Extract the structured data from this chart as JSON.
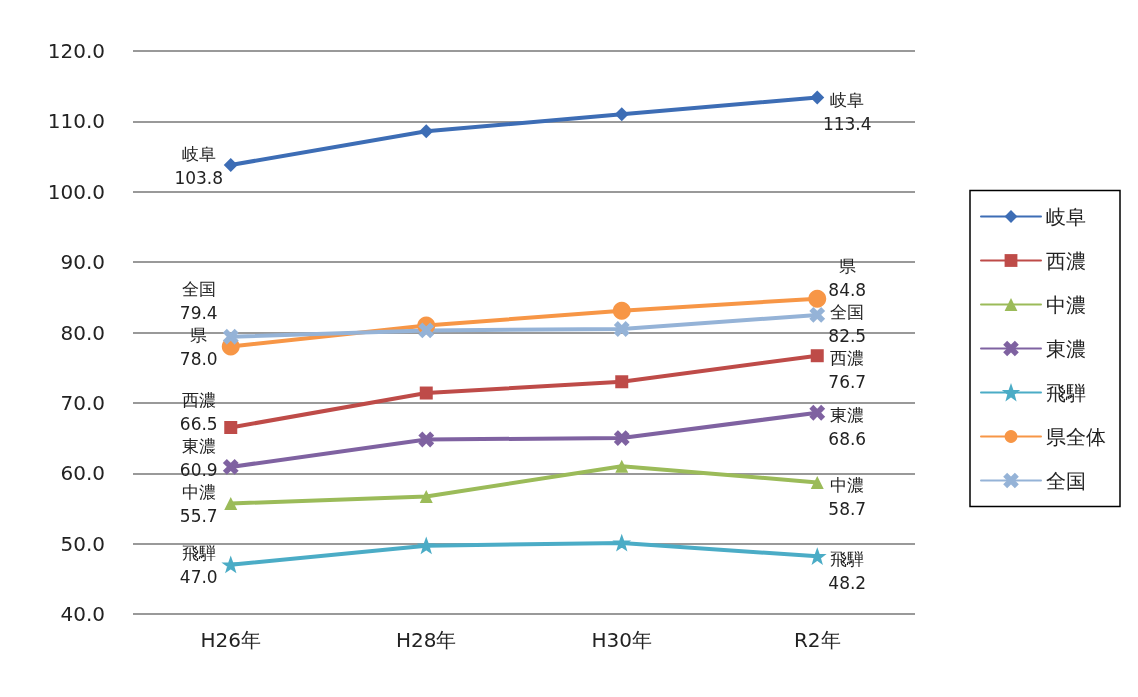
{
  "chart_data": {
    "type": "line",
    "categories": [
      "H26年",
      "H28年",
      "H30年",
      "R2年"
    ],
    "ylim": [
      40,
      120
    ],
    "yticks": [
      {
        "value": 40,
        "label": "40.0"
      },
      {
        "value": 50,
        "label": "50.0"
      },
      {
        "value": 60,
        "label": "60.0"
      },
      {
        "value": 70,
        "label": "70.0"
      },
      {
        "value": 80,
        "label": "80.0"
      },
      {
        "value": 90,
        "label": "90.0"
      },
      {
        "value": 100,
        "label": "100.0"
      },
      {
        "value": 110,
        "label": "110.0"
      },
      {
        "value": 120,
        "label": "120.0"
      }
    ],
    "grid": "y",
    "legend": "right",
    "line_style": "solid",
    "series": [
      {
        "name": "岐阜",
        "color": "#3d6db5",
        "marker": "diamond",
        "values": [
          103.8,
          108.6,
          111.0,
          113.4
        ],
        "value_labels": [
          "103.8",
          null,
          null,
          "113.4"
        ]
      },
      {
        "name": "西濃",
        "color": "#be4b48",
        "marker": "square",
        "values": [
          66.5,
          71.4,
          73.0,
          76.7
        ],
        "value_labels": [
          "66.5",
          null,
          null,
          "76.7"
        ]
      },
      {
        "name": "中濃",
        "color": "#9bbb59",
        "marker": "triangle",
        "values": [
          55.7,
          56.7,
          61.0,
          58.7
        ],
        "value_labels": [
          "55.7",
          null,
          null,
          "58.7"
        ]
      },
      {
        "name": "東濃",
        "color": "#7f62a1",
        "marker": "cross",
        "values": [
          60.9,
          64.8,
          65.0,
          68.6
        ],
        "value_labels": [
          "60.9",
          null,
          null,
          "68.6"
        ]
      },
      {
        "name": "飛騨",
        "color": "#4bacc6",
        "marker": "star",
        "values": [
          47.0,
          49.7,
          50.1,
          48.2
        ],
        "value_labels": [
          "47.0",
          null,
          null,
          "48.2"
        ]
      },
      {
        "name": "県全体",
        "color": "#f79646",
        "marker": "circle",
        "values": [
          78.0,
          81.0,
          83.1,
          84.8
        ],
        "value_labels": [
          "78.0",
          null,
          null,
          "84.8"
        ]
      },
      {
        "name": "全国",
        "color": "#95b3d7",
        "marker": "cross",
        "values": [
          79.4,
          80.3,
          80.5,
          82.5
        ],
        "value_labels": [
          "79.4",
          null,
          null,
          "82.5"
        ]
      }
    ],
    "annotations": [
      {
        "text": "岐阜",
        "x": "H26年",
        "y": 103.8
      },
      {
        "text": "岐阜",
        "x": "R2年",
        "y": 113.4
      },
      {
        "text": "西濃",
        "x": "H26年",
        "y": 66.5
      },
      {
        "text": "西濃",
        "x": "R2年",
        "y": 76.7
      },
      {
        "text": "中濃",
        "x": "H26年",
        "y": 55.7
      },
      {
        "text": "中濃",
        "x": "R2年",
        "y": 58.7
      },
      {
        "text": "東濃",
        "x": "H26年",
        "y": 60.9
      },
      {
        "text": "東濃",
        "x": "R2年",
        "y": 68.6
      },
      {
        "text": "飛騨",
        "x": "H26年",
        "y": 47.0
      },
      {
        "text": "飛騨",
        "x": "R2年",
        "y": 48.2
      },
      {
        "text": "県",
        "x": "H26年",
        "y": 78.0
      },
      {
        "text": "県",
        "x": "R2年",
        "y": 84.8
      },
      {
        "text": "全国",
        "x": "H26年",
        "y": 79.4
      },
      {
        "text": "全国",
        "x": "R2年",
        "y": 82.5
      }
    ]
  }
}
